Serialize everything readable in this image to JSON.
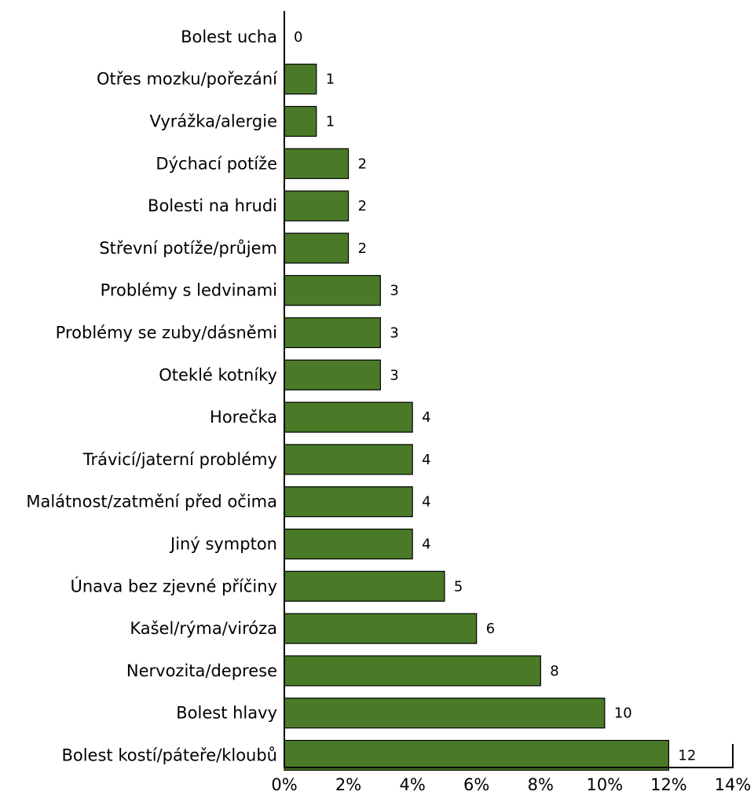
{
  "chart_data": {
    "type": "bar",
    "orientation": "horizontal",
    "categories": [
      "Bolest ucha",
      "Otřes mozku/pořezání",
      "Vyrážka/alergie",
      "Dýchací potíže",
      "Bolesti na hrudi",
      "Střevní potíže/průjem",
      "Problémy s ledvinami",
      "Problémy se zuby/dásněmi",
      "Oteklé kotníky",
      "Horečka",
      "Trávicí/jaterní problémy",
      "Malátnost/zatmění před očima",
      "Jiný sympton",
      "Únava bez zjevné příčiny",
      "Kašel/rýma/viróza",
      "Nervozita/deprese",
      "Bolest hlavy",
      "Bolest kostí/páteře/kloubů"
    ],
    "values": [
      0,
      1,
      1,
      2,
      2,
      2,
      3,
      3,
      3,
      4,
      4,
      4,
      4,
      5,
      6,
      8,
      10,
      12
    ],
    "data_labels": [
      "0",
      "1",
      "1",
      "2",
      "2",
      "2",
      "3",
      "3",
      "3",
      "4",
      "4",
      "4",
      "4",
      "5",
      "6",
      "8",
      "10",
      "12"
    ],
    "x_ticks": [
      "0%",
      "2%",
      "4%",
      "6%",
      "8%",
      "10%",
      "12%",
      "14%"
    ],
    "xlim": [
      0,
      14
    ],
    "grid": false,
    "bar_color": "#4a7a28",
    "bar_edge_color": "#000000"
  }
}
